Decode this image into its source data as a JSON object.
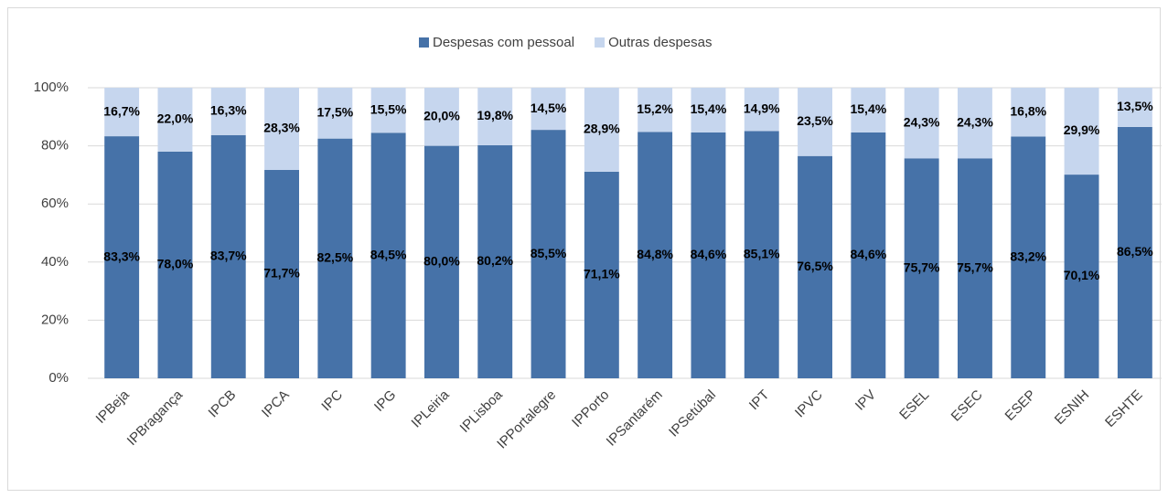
{
  "chart_data": {
    "type": "stacked_bar",
    "categories": [
      "IPBeja",
      "IPBragança",
      "IPCB",
      "IPCA",
      "IPC",
      "IPG",
      "IPLeiria",
      "IPLisboa",
      "IPPortalegre",
      "IPPorto",
      "IPSantarém",
      "IPSetúbal",
      "IPT",
      "IPVC",
      "IPV",
      "ESEL",
      "ESEC",
      "ESEP",
      "ESNIH",
      "ESHTE"
    ],
    "series": [
      {
        "name": "Despesas com pessoal",
        "color": "#4672a8",
        "values": [
          83.3,
          78.0,
          83.7,
          71.7,
          82.5,
          84.5,
          80.0,
          80.2,
          85.5,
          71.1,
          84.8,
          84.6,
          85.1,
          76.5,
          84.6,
          75.7,
          75.7,
          83.2,
          70.1,
          86.5
        ],
        "value_labels": [
          "83,3%",
          "78,0%",
          "83,7%",
          "71,7%",
          "82,5%",
          "84,5%",
          "80,0%",
          "80,2%",
          "85,5%",
          "71,1%",
          "84,8%",
          "84,6%",
          "85,1%",
          "76,5%",
          "84,6%",
          "75,7%",
          "75,7%",
          "83,2%",
          "70,1%",
          "86,5%"
        ]
      },
      {
        "name": "Outras despesas",
        "color": "#c6d6ee",
        "values": [
          16.7,
          22.0,
          16.3,
          28.3,
          17.5,
          15.5,
          20.0,
          19.8,
          14.5,
          28.9,
          15.2,
          15.4,
          14.9,
          23.5,
          15.4,
          24.3,
          24.3,
          16.8,
          29.9,
          13.5
        ],
        "value_labels": [
          "16,7%",
          "22,0%",
          "16,3%",
          "28,3%",
          "17,5%",
          "15,5%",
          "20,0%",
          "19,8%",
          "14,5%",
          "28,9%",
          "15,2%",
          "15,4%",
          "14,9%",
          "23,5%",
          "15,4%",
          "24,3%",
          "24,3%",
          "16,8%",
          "29,9%",
          "13,5%"
        ]
      }
    ],
    "ylim": [
      0,
      100
    ],
    "yticks": [
      {
        "value": 0,
        "label": "0%"
      },
      {
        "value": 20,
        "label": "20%"
      },
      {
        "value": 40,
        "label": "40%"
      },
      {
        "value": 60,
        "label": "60%"
      },
      {
        "value": 80,
        "label": "80%"
      },
      {
        "value": 100,
        "label": "100%"
      }
    ],
    "grid": true,
    "legend": "top"
  }
}
